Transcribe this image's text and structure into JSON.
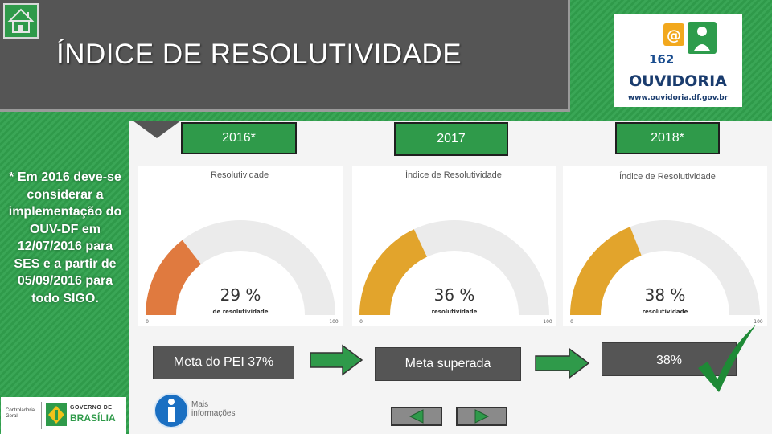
{
  "header": {
    "title": "ÍNDICE DE RESOLUTIVIDADE"
  },
  "logo": {
    "number": "162",
    "name": "OUVIDORIA",
    "url": "www.ouvidoria.df.gov.br"
  },
  "years": [
    "2016*",
    "2017",
    "2018*"
  ],
  "note": "* Em 2016 deve-se considerar a implementação do OUV-DF em 12/07/2016 para SES e a partir de 05/09/2016 para todo SIGO.",
  "gauges": [
    {
      "title": "Resolutividade",
      "value_label": "29 %",
      "caption": "de resolutividade",
      "min_label": "0",
      "max_label": "100",
      "value": 29,
      "color": "#e07a3f"
    },
    {
      "title": "Índice de Resolutividade",
      "value_label": "36 %",
      "caption": "resolutividade",
      "min_label": "0",
      "max_label": "100",
      "value": 36,
      "color": "#e2a42c"
    },
    {
      "title": "Índice de Resolutividade",
      "value_label": "38 %",
      "caption": "resolutividade",
      "min_label": "0",
      "max_label": "100",
      "value": 38,
      "color": "#e2a42c"
    }
  ],
  "bottom": {
    "meta_label": "Meta do PEI  37%",
    "superada_label": "Meta superada",
    "result_label": "38%",
    "more_info": [
      "Mais",
      "informações"
    ],
    "footer_logo": {
      "left": [
        "Controladoria",
        "Geral"
      ],
      "gov": "GOVERNO DE",
      "city": "BRASÍLIA"
    }
  },
  "colors": {
    "green": "#2f9a4a",
    "dark_gray": "#555555",
    "check_green": "#1e8a36"
  }
}
